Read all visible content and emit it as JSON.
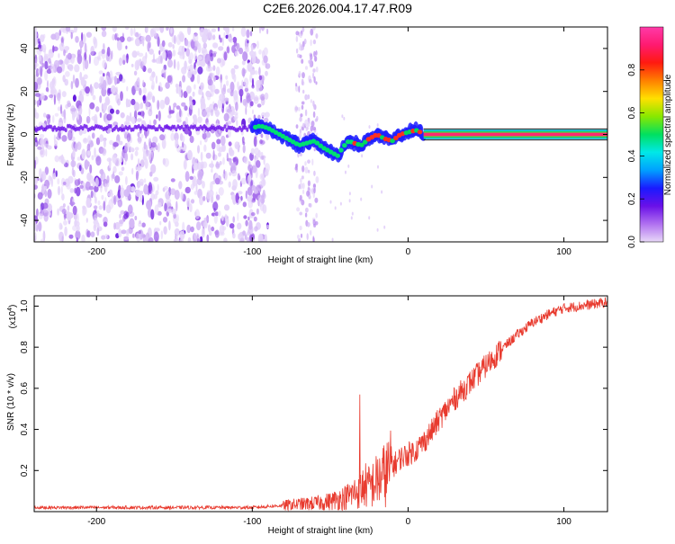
{
  "title": "C2E6.2026.004.17.47.R09",
  "colors": {
    "snr_line": "#e83a2e",
    "axes": "#000000",
    "colormap_stops": [
      "#e8d8f8",
      "#b070f0",
      "#6a10e8",
      "#1a1aff",
      "#00a0ff",
      "#00e8e8",
      "#00e060",
      "#88e800",
      "#ffe000",
      "#ff8000",
      "#ff1a10",
      "#ff1a70",
      "#ff3aa8"
    ]
  },
  "chart_data": [
    {
      "type": "heatmap",
      "xlabel": "Height of straight line (km)",
      "ylabel": "Frequency (Hz)",
      "xlim": [
        -240,
        128
      ],
      "ylim": [
        -50,
        50
      ],
      "xticks": [
        -200,
        -100,
        0,
        100
      ],
      "yticks": [
        -40,
        -20,
        0,
        20,
        40
      ],
      "colorbar": {
        "label": "Normalized spectral amplitude",
        "range": [
          0,
          1
        ],
        "ticks": [
          "0.0",
          "0.2",
          "0.4",
          "0.6",
          "0.8"
        ]
      },
      "description_points": {
        "noise_region_km": [
          -240,
          -90
        ],
        "sparse_noise_km": [
          -72,
          -58
        ],
        "ridge": [
          [
            -120,
            3
          ],
          [
            -100,
            3
          ],
          [
            -95,
            4
          ],
          [
            -90,
            3
          ],
          [
            -85,
            1
          ],
          [
            -80,
            -1
          ],
          [
            -75,
            -3
          ],
          [
            -70,
            -5
          ],
          [
            -65,
            -4
          ],
          [
            -60,
            -3
          ],
          [
            -55,
            -6
          ],
          [
            -50,
            -8
          ],
          [
            -45,
            -10
          ],
          [
            -42,
            -6
          ],
          [
            -38,
            -3
          ],
          [
            -35,
            -4
          ],
          [
            -30,
            -5
          ],
          [
            -25,
            -2
          ],
          [
            -20,
            0
          ],
          [
            -15,
            -2
          ],
          [
            -10,
            -3
          ],
          [
            -5,
            0
          ],
          [
            0,
            1
          ],
          [
            5,
            2
          ],
          [
            8,
            1
          ],
          [
            10,
            0
          ],
          [
            128,
            0
          ]
        ]
      }
    },
    {
      "type": "line",
      "xlabel": "Height of straight line (km)",
      "ylabel": "SNR (10 * v/v)",
      "exponent_label": "(x10",
      "exponent_value": "4",
      "exponent_close": ")",
      "xlim": [
        -240,
        128
      ],
      "ylim": [
        0,
        1.05
      ],
      "xticks": [
        -200,
        -100,
        0,
        100
      ],
      "yticks": [
        "0.2",
        "0.4",
        "0.6",
        "0.8",
        "1.0"
      ],
      "yticks_values": [
        0.2,
        0.4,
        0.6,
        0.8,
        1.0
      ],
      "series": [
        {
          "x": [
            -240,
            -200,
            -150,
            -110,
            -100,
            -90,
            -80,
            -70,
            -60,
            -50,
            -45,
            -40,
            -35,
            -30,
            -28,
            -25,
            -20,
            -15,
            -10,
            -5,
            0,
            5,
            10,
            15,
            20,
            25,
            30,
            40,
            50,
            60,
            70,
            80,
            90,
            100,
            110,
            120,
            128
          ],
          "values": [
            0.02,
            0.02,
            0.02,
            0.02,
            0.02,
            0.025,
            0.03,
            0.035,
            0.04,
            0.05,
            0.06,
            0.07,
            0.09,
            0.11,
            0.13,
            0.12,
            0.15,
            0.18,
            0.22,
            0.26,
            0.28,
            0.3,
            0.34,
            0.39,
            0.45,
            0.5,
            0.55,
            0.63,
            0.71,
            0.79,
            0.86,
            0.92,
            0.96,
            0.99,
            1.0,
            1.01,
            1.02
          ]
        }
      ],
      "spike": {
        "x": -31,
        "value": 0.57
      }
    }
  ]
}
